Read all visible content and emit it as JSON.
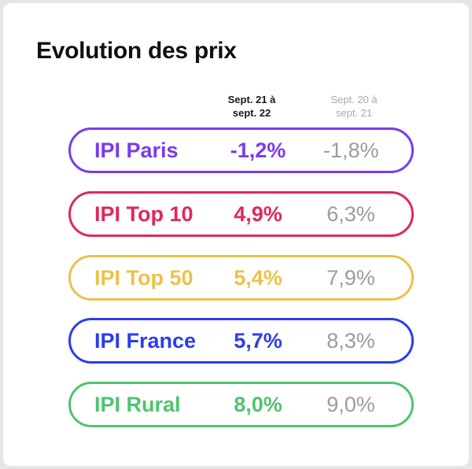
{
  "title": "Evolution des prix",
  "columns": {
    "current": "Sept. 21 à\nsept. 22",
    "previous": "Sept. 20 à\nsept. 21"
  },
  "rows": [
    {
      "label": "IPI Paris",
      "current": "-1,2%",
      "previous": "-1,8%",
      "color": "#7c3aed"
    },
    {
      "label": "IPI Top 10",
      "current": "4,9%",
      "previous": "6,3%",
      "color": "#e0285a"
    },
    {
      "label": "IPI Top 50",
      "current": "5,4%",
      "previous": "7,9%",
      "color": "#ecc14b"
    },
    {
      "label": "IPI France",
      "current": "5,7%",
      "previous": "8,3%",
      "color": "#2c3dea"
    },
    {
      "label": "IPI Rural",
      "current": "8,0%",
      "previous": "9,0%",
      "color": "#4fc46e"
    }
  ]
}
